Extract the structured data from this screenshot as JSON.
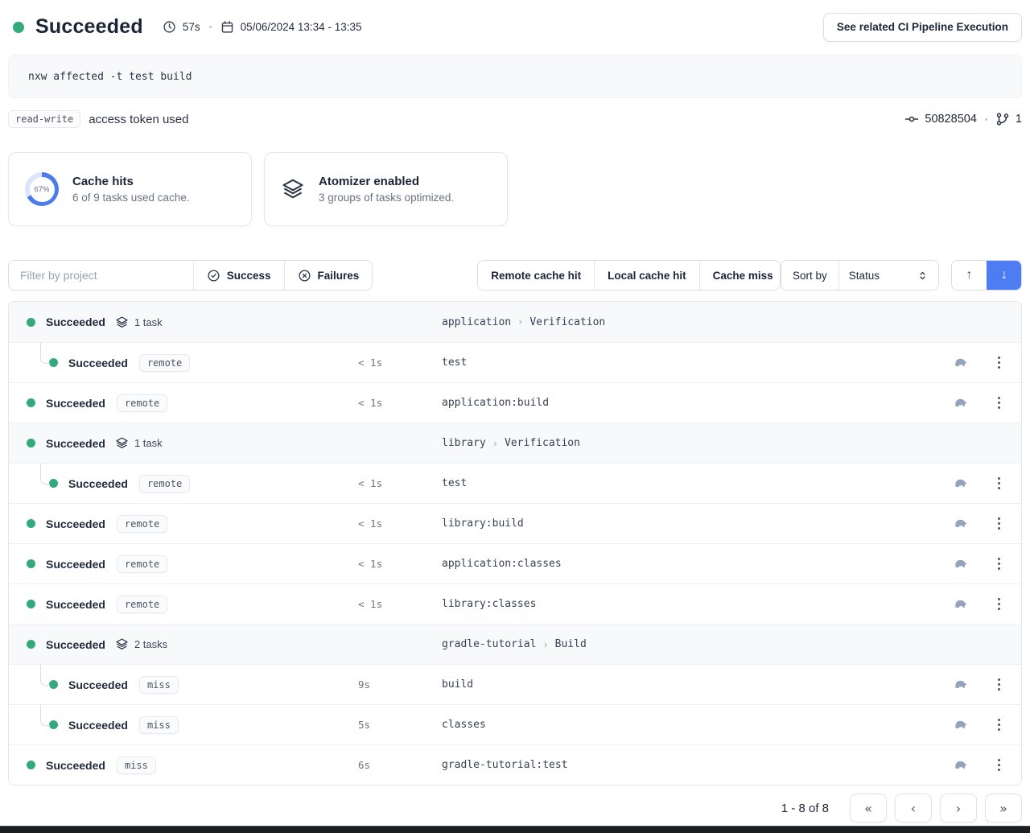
{
  "header": {
    "status_label": "Succeeded",
    "duration": "57s",
    "date_range": "05/06/2024 13:34 - 13:35",
    "cta_label": "See related CI Pipeline Execution"
  },
  "command": {
    "text": "nxw affected -t test build"
  },
  "token": {
    "badge": "read-write",
    "label": "access token used",
    "commit": "50828504",
    "branch_count": "1"
  },
  "cards": [
    {
      "title": "Cache hits",
      "subtitle": "6 of 9 tasks used cache.",
      "percent": 67,
      "percent_label": "67%",
      "ring_color": "#4b7bec",
      "track_color": "#dce4fa"
    },
    {
      "title": "Atomizer enabled",
      "subtitle": "3 groups of tasks optimized."
    }
  ],
  "filters": {
    "search_placeholder": "Filter by project",
    "success_label": "Success",
    "failures_label": "Failures",
    "remote_label": "Remote cache hit",
    "local_label": "Local cache hit",
    "miss_label": "Cache miss",
    "sort_label": "Sort by",
    "sort_value": "Status",
    "sort_up_icon": "↑",
    "sort_down_icon": "↓"
  },
  "rows": [
    {
      "kind": "group",
      "status": "Succeeded",
      "tasks_label": "1 task",
      "project": "application",
      "crumb_sep": "›",
      "target": "Verification"
    },
    {
      "kind": "task",
      "indent": true,
      "status": "Succeeded",
      "badge": "remote",
      "duration": "< 1s",
      "name": "test"
    },
    {
      "kind": "task",
      "indent": false,
      "status": "Succeeded",
      "badge": "remote",
      "duration": "< 1s",
      "name": "application:build"
    },
    {
      "kind": "group",
      "status": "Succeeded",
      "tasks_label": "1 task",
      "project": "library",
      "crumb_sep": "›",
      "target": "Verification"
    },
    {
      "kind": "task",
      "indent": true,
      "status": "Succeeded",
      "badge": "remote",
      "duration": "< 1s",
      "name": "test"
    },
    {
      "kind": "task",
      "indent": false,
      "status": "Succeeded",
      "badge": "remote",
      "duration": "< 1s",
      "name": "library:build"
    },
    {
      "kind": "task",
      "indent": false,
      "status": "Succeeded",
      "badge": "remote",
      "duration": "< 1s",
      "name": "application:classes"
    },
    {
      "kind": "task",
      "indent": false,
      "status": "Succeeded",
      "badge": "remote",
      "duration": "< 1s",
      "name": "library:classes"
    },
    {
      "kind": "group",
      "status": "Succeeded",
      "tasks_label": "2 tasks",
      "project": "gradle-tutorial",
      "crumb_sep": "›",
      "target": "Build"
    },
    {
      "kind": "task",
      "indent": true,
      "status": "Succeeded",
      "badge": "miss",
      "duration": "9s",
      "name": "build"
    },
    {
      "kind": "task",
      "indent": true,
      "status": "Succeeded",
      "badge": "miss",
      "duration": "5s",
      "name": "classes"
    },
    {
      "kind": "task",
      "indent": false,
      "status": "Succeeded",
      "badge": "miss",
      "duration": "6s",
      "name": "gradle-tutorial:test"
    }
  ],
  "pagination": {
    "label": "1 - 8 of 8",
    "first_icon": "«",
    "prev_icon": "‹",
    "next_icon": "›",
    "last_icon": "»"
  },
  "colors": {
    "success_green": "#34a97c",
    "accent_blue": "#4d7cf3"
  }
}
